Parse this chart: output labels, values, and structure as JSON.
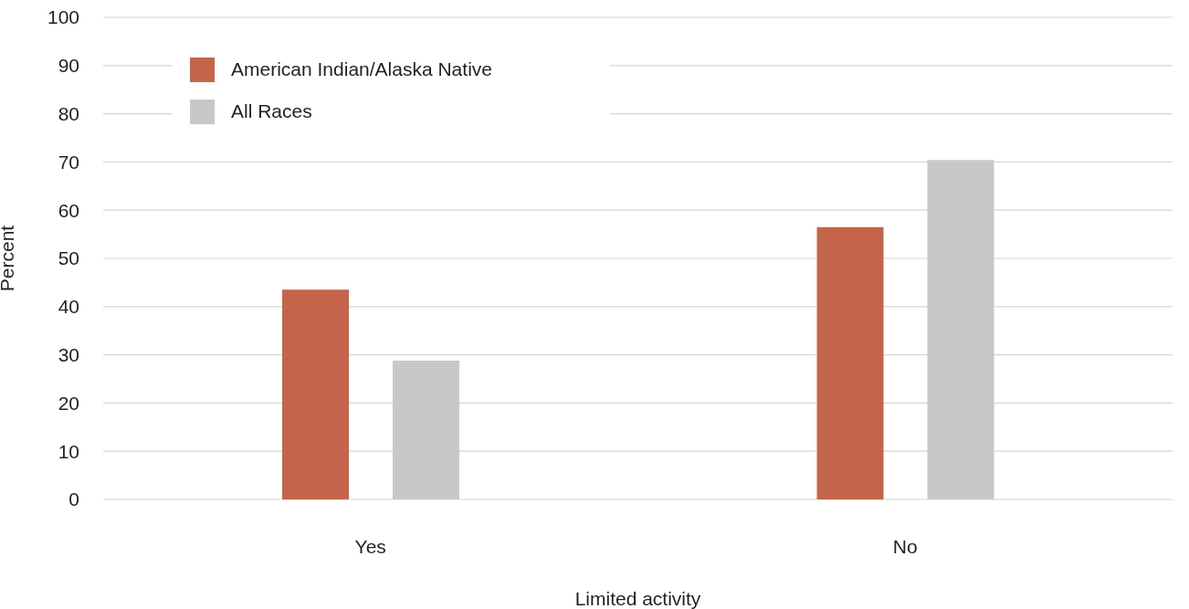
{
  "chart_data": {
    "type": "bar",
    "xlabel": "Limited activity",
    "ylabel": "Percent",
    "categories": [
      "Yes",
      "No"
    ],
    "series": [
      {
        "name": "American Indian/Alaska Native",
        "color": "#c4654a",
        "values": [
          43.5,
          56.5
        ]
      },
      {
        "name": "All Races",
        "color": "#c7c8ca",
        "values": [
          28.8,
          70.4
        ]
      }
    ],
    "ylim": [
      0,
      100
    ],
    "yticks": [
      0,
      10,
      20,
      30,
      40,
      50,
      60,
      70,
      80,
      90,
      100
    ],
    "grid": "y",
    "legend": "top left"
  }
}
